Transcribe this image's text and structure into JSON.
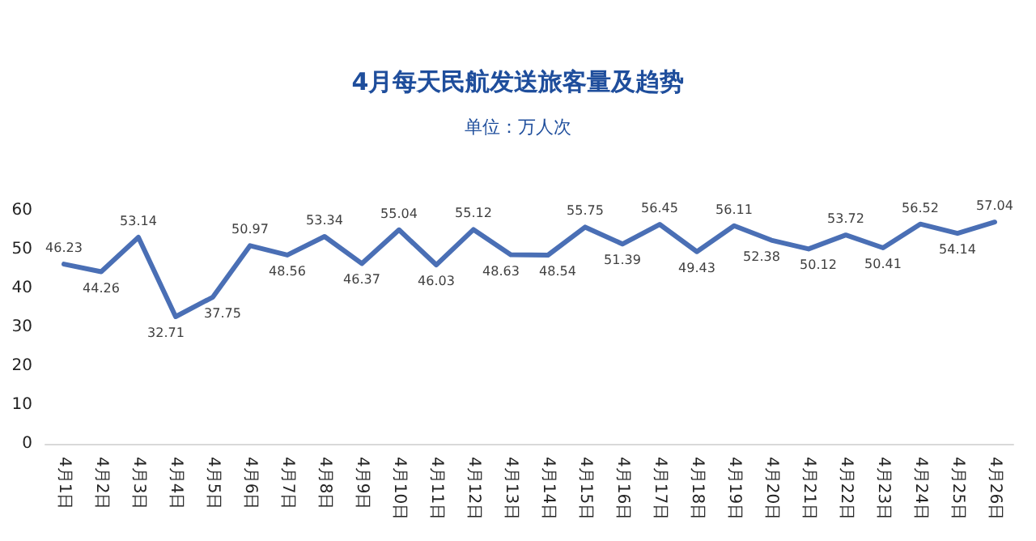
{
  "chart_data": {
    "type": "line",
    "title": "4月每天民航发送旅客量及趋势",
    "subtitle": "单位：万人次",
    "categories": [
      "4月1日",
      "4月2日",
      "4月3日",
      "4月4日",
      "4月5日",
      "4月6日",
      "4月7日",
      "4月8日",
      "4月9日",
      "4月10日",
      "4月11日",
      "4月12日",
      "4月13日",
      "4月14日",
      "4月15日",
      "4月16日",
      "4月17日",
      "4月18日",
      "4月19日",
      "4月20日",
      "4月21日",
      "4月22日",
      "4月23日",
      "4月24日",
      "4月25日",
      "4月26日"
    ],
    "series": [
      {
        "color": "#4a6fb5",
        "values": [
          46.23,
          44.26,
          53.14,
          32.71,
          37.75,
          50.97,
          48.56,
          53.34,
          46.37,
          55.04,
          46.03,
          55.12,
          48.63,
          48.54,
          55.75,
          51.39,
          56.45,
          49.43,
          56.11,
          52.38,
          50.12,
          53.72,
          50.41,
          56.52,
          54.14,
          57.04
        ]
      }
    ],
    "ylim": [
      0,
      60
    ],
    "yticks": [
      0,
      10,
      20,
      30,
      40,
      50,
      60
    ],
    "grid": false,
    "marker": "none",
    "line_style": "solid",
    "data_labels": true
  }
}
